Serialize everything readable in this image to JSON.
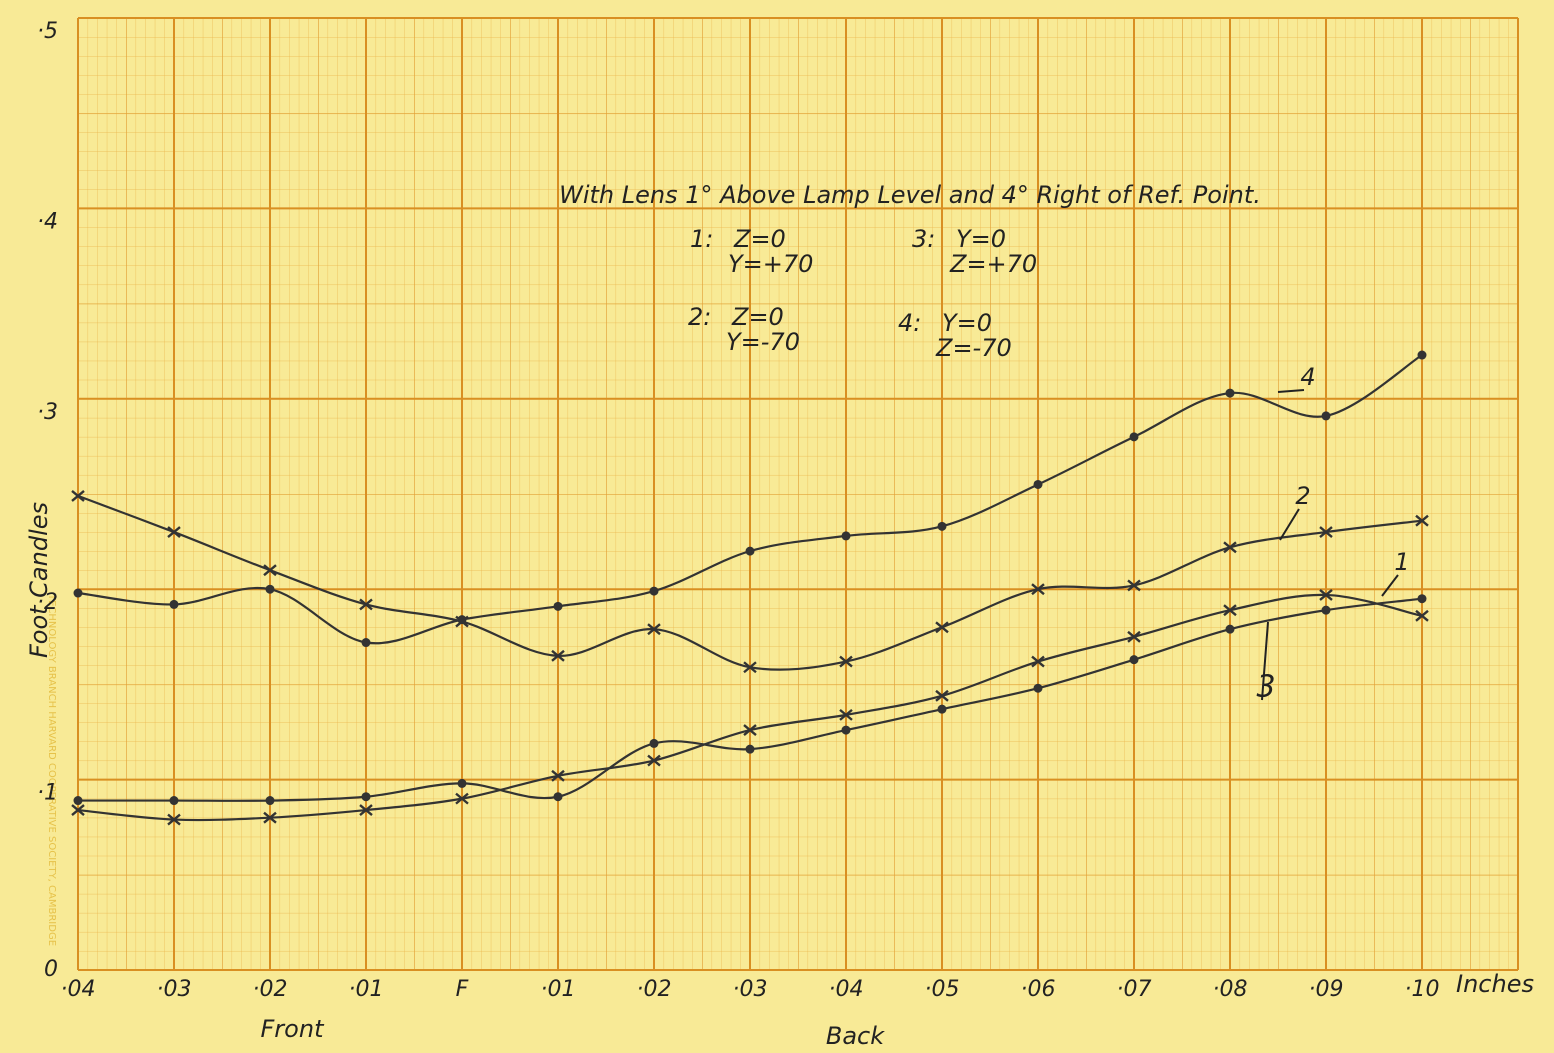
{
  "chart_data": {
    "type": "line",
    "title": "With Lens 1° Above Lamp Level and 4° Right of Ref. Point.",
    "y_label": "Foot Candles",
    "x_label": "Inches",
    "annotations": [
      "Front",
      "Back",
      "TECHNOLOGY BRANCH HARVARD COOPERATIVE SOCIETY, CAMBRIDGE"
    ],
    "x": [
      -0.04,
      -0.03,
      -0.02,
      -0.01,
      0,
      0.01,
      0.02,
      0.03,
      0.04,
      0.05,
      0.06,
      0.07,
      0.08,
      0.09,
      0.1
    ],
    "xlim": [
      -0.04,
      0.11
    ],
    "xticks": [
      {
        "value": -0.04,
        "label": "·04"
      },
      {
        "value": -0.03,
        "label": "·03"
      },
      {
        "value": -0.02,
        "label": "·02"
      },
      {
        "value": -0.01,
        "label": "·01"
      },
      {
        "value": 0,
        "label": "F"
      },
      {
        "value": 0.01,
        "label": "·01"
      },
      {
        "value": 0.02,
        "label": "·02"
      },
      {
        "value": 0.03,
        "label": "·03"
      },
      {
        "value": 0.04,
        "label": "·04"
      },
      {
        "value": 0.05,
        "label": "·05"
      },
      {
        "value": 0.06,
        "label": "·06"
      },
      {
        "value": 0.07,
        "label": "·07"
      },
      {
        "value": 0.08,
        "label": "·08"
      },
      {
        "value": 0.09,
        "label": "·09"
      },
      {
        "value": 0.1,
        "label": "·10"
      }
    ],
    "ylim": [
      0,
      0.5
    ],
    "yticks": [
      0,
      {
        "value": 0.1,
        "label": "·1"
      },
      {
        "value": 0.2,
        "label": "·2"
      },
      {
        "value": 0.3,
        "label": "·3"
      },
      {
        "value": 0.4,
        "label": "·4"
      },
      {
        "value": 0.5,
        "label": "·5"
      }
    ],
    "grid": true,
    "series": [
      {
        "name": "1",
        "color": "#333333",
        "marker": "x",
        "key_label": "1:",
        "key": [
          "Z=0",
          "Y=+70"
        ],
        "values": [
          0.084,
          0.079,
          0.08,
          0.084,
          0.09,
          0.102,
          0.11,
          0.126,
          0.134,
          0.144,
          0.162,
          0.175,
          0.189,
          0.197,
          0.186
        ]
      },
      {
        "name": "2",
        "color": "#333333",
        "marker": "x",
        "key_label": "2:",
        "key": [
          "Z=0",
          "Y=-70"
        ],
        "values": [
          0.249,
          0.23,
          0.21,
          0.192,
          0.183,
          0.165,
          0.179,
          0.159,
          0.162,
          0.18,
          0.2,
          0.202,
          0.222,
          0.23,
          0.236
        ]
      },
      {
        "name": "3",
        "color": "#333333",
        "marker": "dot",
        "key_label": "3:",
        "key": [
          "Y=0",
          "Z=+70"
        ],
        "values": [
          0.089,
          0.089,
          0.089,
          0.091,
          0.098,
          0.091,
          0.119,
          0.116,
          0.126,
          0.137,
          0.148,
          0.163,
          0.179,
          0.189,
          0.195
        ]
      },
      {
        "name": "4",
        "color": "#333333",
        "marker": "dot",
        "key_label": "4:",
        "key": [
          "Y=0",
          "Z=-70"
        ],
        "values": [
          0.198,
          0.192,
          0.2,
          0.172,
          0.184,
          0.191,
          0.199,
          0.22,
          0.228,
          0.233,
          0.255,
          0.28,
          0.303,
          0.291,
          0.323
        ]
      }
    ]
  }
}
